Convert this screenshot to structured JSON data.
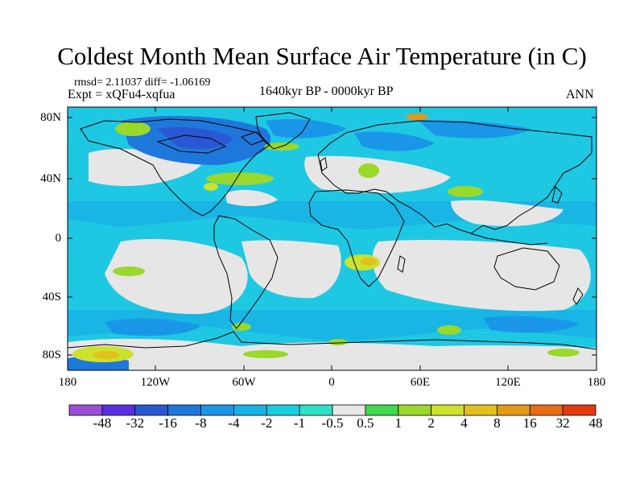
{
  "map": {
    "title": "Coldest Month Mean Surface Air Temperature (in C)",
    "stats_line": "rmsd= 2.11037 diff= -1.06169",
    "experiment": "Expt = xQFu4-xqfua",
    "period": "1640kyr BP - 0000kyr BP",
    "season": "ANN",
    "lat_labels": [
      "80N",
      "40N",
      "0",
      "40S",
      "80S"
    ],
    "lon_labels": [
      "180",
      "120W",
      "60W",
      "0",
      "60E",
      "120E",
      "180"
    ]
  },
  "colorbar": {
    "labels": [
      "-48",
      "-32",
      "-16",
      "-8",
      "-4",
      "-2",
      "-1",
      "-0.5",
      "0.5",
      "1",
      "2",
      "4",
      "8",
      "16",
      "32",
      "48"
    ],
    "colors": [
      "#9b4fd8",
      "#5a2ee0",
      "#2a58d4",
      "#1e78dc",
      "#1a96e8",
      "#18b2e8",
      "#1acce0",
      "#2ee0c8",
      "#e6e6e6",
      "#40d84c",
      "#9ad82c",
      "#cde22a",
      "#e2c01e",
      "#e49a16",
      "#ea6a14",
      "#e23a10"
    ]
  },
  "colors": {
    "ocean_base": "#1ec8e2",
    "near_zero": "#e6e6e6",
    "coast": "#000000"
  }
}
